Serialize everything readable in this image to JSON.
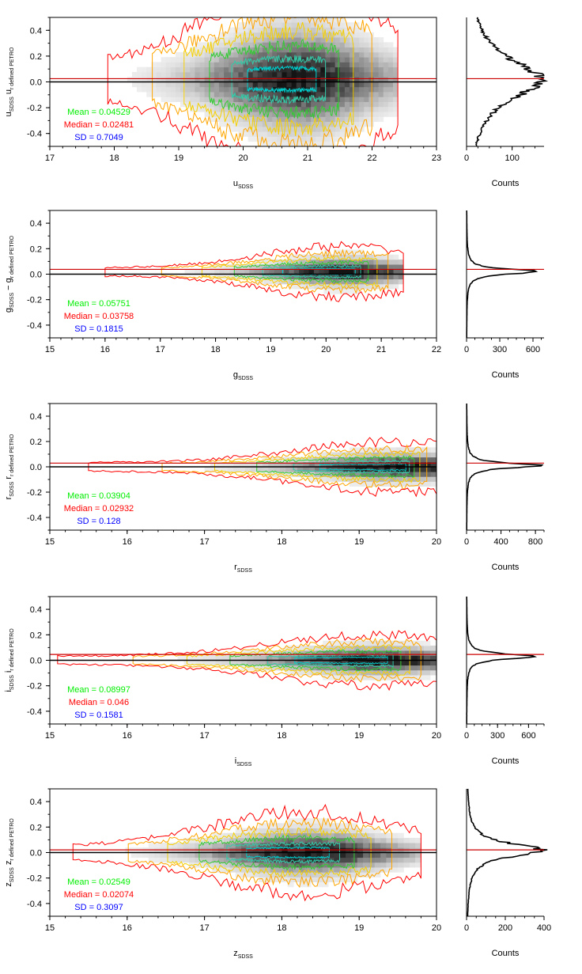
{
  "chart_data": [
    {
      "type": "scatter",
      "band": "u",
      "title": "",
      "xlabel": "u",
      "xlabel_sub": "SDSS",
      "ylabel": "u",
      "ylabel_sub": "SDSS",
      "ylabel_rest": "u",
      "ylabel_rest_sub": "r defined PETRO",
      "xlim": [
        17,
        23
      ],
      "ylim": [
        -0.5,
        0.5
      ],
      "xticks": [
        17,
        18,
        19,
        20,
        21,
        22,
        23
      ],
      "yticks": [
        -0.4,
        -0.2,
        0.0,
        0.2,
        0.4
      ],
      "density": {
        "x_center": 20.8,
        "x_spread": 1.0,
        "x_min": 17.9,
        "x_max": 22.4,
        "y_center": 0.02,
        "y_spread": 0.18
      },
      "stats": {
        "mean_label": "Mean = 0.04529",
        "median_label": "Median = 0.02481",
        "sd_label": "SD = 0.7049"
      },
      "reference_lines": {
        "zero": 0.0,
        "median": 0.02481
      },
      "histogram": {
        "xlabel": "Counts",
        "xlim": [
          0,
          170
        ],
        "xticks": [
          0,
          100
        ],
        "peak": 160,
        "y_center": 0.02,
        "y_width": 0.25
      }
    },
    {
      "type": "scatter",
      "band": "g",
      "title": "",
      "xlabel": "g",
      "xlabel_sub": "SDSS",
      "ylabel": "g",
      "ylabel_sub": "SDSS",
      "ylabel_rest": "− g",
      "ylabel_rest_sub": "r defined PETRO",
      "xlim": [
        15,
        22
      ],
      "ylim": [
        -0.5,
        0.5
      ],
      "xticks": [
        15,
        16,
        17,
        18,
        19,
        20,
        21,
        22
      ],
      "yticks": [
        -0.4,
        -0.2,
        0.0,
        0.2,
        0.4
      ],
      "density": {
        "x_center": 20.3,
        "x_spread": 1.1,
        "x_min": 16.0,
        "x_max": 21.4,
        "y_center": 0.02,
        "y_spread": 0.05
      },
      "stats": {
        "mean_label": "Mean = 0.05751",
        "median_label": "Median = 0.03758",
        "sd_label": "SD = 0.1815"
      },
      "reference_lines": {
        "zero": 0.0,
        "median": 0.03758
      },
      "histogram": {
        "xlabel": "Counts",
        "xlim": [
          0,
          700
        ],
        "xticks": [
          0,
          300,
          600
        ],
        "peak": 640,
        "y_center": 0.02,
        "y_width": 0.03
      }
    },
    {
      "type": "scatter",
      "band": "r",
      "title": "",
      "xlabel": "r",
      "xlabel_sub": "SDSS",
      "ylabel": "r",
      "ylabel_sub": "SDSS",
      "ylabel_rest": "r",
      "ylabel_rest_sub": "r defined PETRO",
      "xlim": [
        15,
        20
      ],
      "ylim": [
        -0.5,
        0.5
      ],
      "xticks": [
        15,
        16,
        17,
        18,
        19,
        20
      ],
      "yticks": [
        -0.4,
        -0.2,
        0.0,
        0.2,
        0.4
      ],
      "density": {
        "x_center": 19.5,
        "x_spread": 1.0,
        "x_min": 15.5,
        "x_max": 20.0,
        "y_center": 0.0,
        "y_spread": 0.05
      },
      "stats": {
        "mean_label": "Mean = 0.03904",
        "median_label": "Median = 0.02932",
        "sd_label": "SD = 0.128"
      },
      "reference_lines": {
        "zero": 0.0,
        "median": 0.02932
      },
      "histogram": {
        "xlabel": "Counts",
        "xlim": [
          0,
          900
        ],
        "xticks": [
          0,
          400,
          800
        ],
        "peak": 830,
        "y_center": 0.01,
        "y_width": 0.03
      }
    },
    {
      "type": "scatter",
      "band": "i",
      "title": "",
      "xlabel": "i",
      "xlabel_sub": "SDSS",
      "ylabel": "i",
      "ylabel_sub": "SDSS",
      "ylabel_rest": "i",
      "ylabel_rest_sub": "r defined PETRO",
      "xlim": [
        15,
        20
      ],
      "ylim": [
        -0.5,
        0.5
      ],
      "xticks": [
        15,
        16,
        17,
        18,
        19,
        20
      ],
      "yticks": [
        -0.4,
        -0.2,
        0.0,
        0.2,
        0.4
      ],
      "density": {
        "x_center": 19.2,
        "x_spread": 1.0,
        "x_min": 15.1,
        "x_max": 20.0,
        "y_center": 0.0,
        "y_spread": 0.05
      },
      "stats": {
        "mean_label": "Mean = 0.08997",
        "median_label": "Median = 0.046",
        "sd_label": "SD = 0.1581"
      },
      "reference_lines": {
        "zero": 0.0,
        "median": 0.046
      },
      "histogram": {
        "xlabel": "Counts",
        "xlim": [
          0,
          750
        ],
        "xticks": [
          0,
          300,
          600
        ],
        "peak": 700,
        "y_center": 0.03,
        "y_width": 0.03
      }
    },
    {
      "type": "scatter",
      "band": "z",
      "title": "",
      "xlabel": "z",
      "xlabel_sub": "SDSS",
      "ylabel": "z",
      "ylabel_sub": "SDSS",
      "ylabel_rest": "z",
      "ylabel_rest_sub": "r defined PETRO",
      "xlim": [
        15,
        20
      ],
      "ylim": [
        -0.5,
        0.5
      ],
      "xticks": [
        15,
        16,
        17,
        18,
        19,
        20
      ],
      "yticks": [
        -0.4,
        -0.2,
        0.0,
        0.2,
        0.4
      ],
      "density": {
        "x_center": 18.3,
        "x_spread": 0.9,
        "x_min": 15.3,
        "x_max": 19.8,
        "y_center": 0.0,
        "y_spread": 0.08
      },
      "stats": {
        "mean_label": "Mean = 0.02549",
        "median_label": "Median = 0.02074",
        "sd_label": "SD = 0.3097"
      },
      "reference_lines": {
        "zero": 0.0,
        "median": 0.02074
      },
      "histogram": {
        "xlabel": "Counts",
        "xlim": [
          0,
          400
        ],
        "xticks": [
          0,
          200,
          400
        ],
        "peak": 385,
        "y_center": 0.02,
        "y_width": 0.08
      }
    }
  ],
  "colors": {
    "contour_outer": "#ff0000",
    "contour_2": "#ffa500",
    "contour_3": "#f5d000",
    "contour_4": "#33cc33",
    "contour_5": "#33ccaa",
    "contour_inner": "#00cccc",
    "mean_text": "#00ee00",
    "median_text": "#ff0000",
    "sd_text": "#0000ff",
    "zero_line": "#000000",
    "median_line": "#cc0000"
  }
}
